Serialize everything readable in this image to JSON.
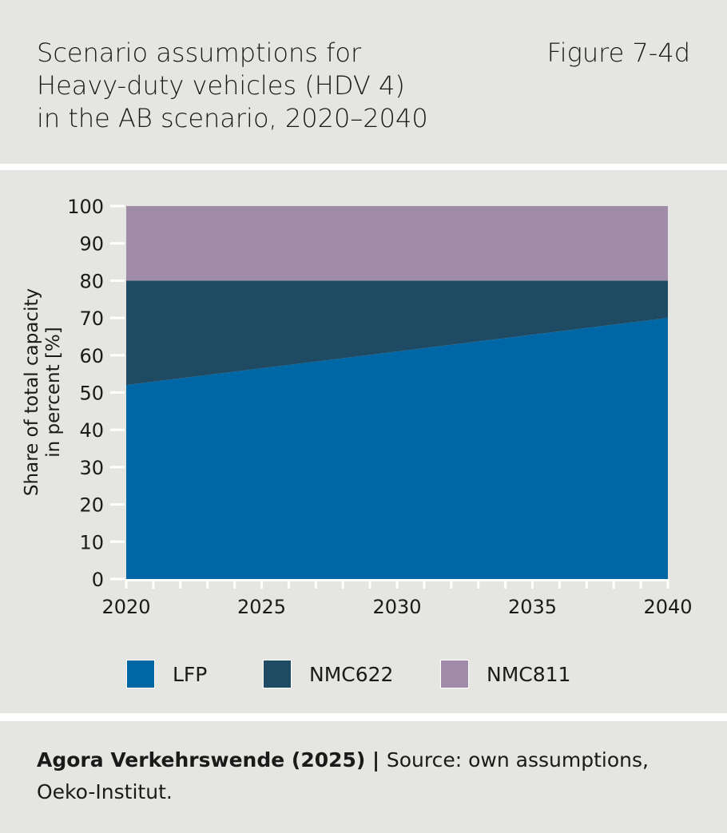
{
  "header": {
    "title": "Scenario assumptions for\nHeavy-duty vehicles (HDV 4)\nin the AB scenario, 2020–2040",
    "figure_label": "Figure 7-4d"
  },
  "footer": {
    "publisher": "Agora Verkehrswende (2025)",
    "separator": " | ",
    "source": "Source: own assumptions, Oeko-Institut."
  },
  "chart_data": {
    "type": "area",
    "stacked": true,
    "title": "Scenario assumptions for Heavy-duty vehicles (HDV 4) in the AB scenario, 2020–2040",
    "xlabel": "",
    "ylabel": "Share of total capacity in percent [%]",
    "x": [
      2020,
      2025,
      2030,
      2035,
      2040
    ],
    "xticks": [
      "2020",
      "2025",
      "2030",
      "2035",
      "2040"
    ],
    "yticks": [
      "0",
      "10",
      "20",
      "30",
      "40",
      "50",
      "60",
      "70",
      "80",
      "90",
      "100"
    ],
    "ylim": [
      0,
      100
    ],
    "xlim": [
      2020,
      2040
    ],
    "grid": false,
    "legend": "bottom",
    "series": [
      {
        "name": "LFP",
        "values": [
          52,
          56.5,
          61,
          65.5,
          70
        ],
        "color": "#0067a6"
      },
      {
        "name": "NMC622",
        "values": [
          28,
          23.5,
          19,
          14.5,
          10
        ],
        "color": "#1e4a63"
      },
      {
        "name": "NMC811",
        "values": [
          20,
          20,
          20,
          20,
          20
        ],
        "color": "#a08ba9"
      }
    ]
  }
}
